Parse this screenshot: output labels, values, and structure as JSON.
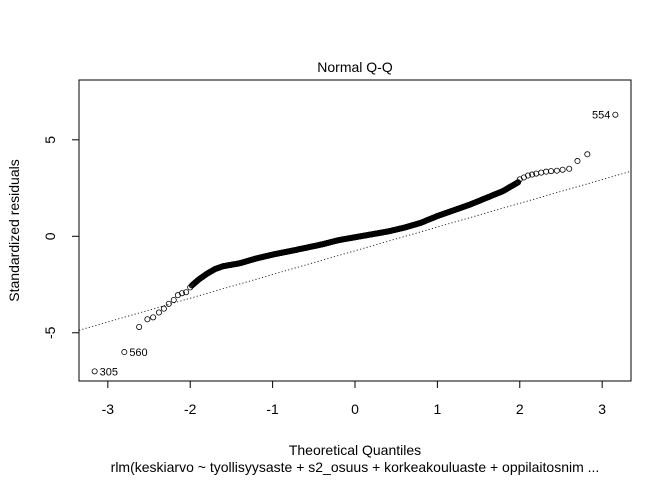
{
  "chart_data": {
    "type": "scatter",
    "title": "Normal Q-Q",
    "xlabel": "Theoretical Quantiles",
    "ylabel": "Standardized residuals",
    "subtitle": "rlm(keskiarvo ~ tyollisyysaste + s2_osuus + korkeakouluaste + oppilaitosnim ...",
    "xlim": [
      -3.35,
      3.35
    ],
    "ylim": [
      -7.5,
      8.1
    ],
    "xticks": [
      -3,
      -2,
      -1,
      0,
      1,
      2,
      3
    ],
    "yticks": [
      -5,
      0,
      5
    ],
    "reference_line": {
      "slope": 1.23,
      "intercept": -0.75,
      "style": "dotted"
    },
    "labeled_points": [
      {
        "label": "554",
        "x": 3.16,
        "y": 6.3
      },
      {
        "label": "560",
        "x": -2.8,
        "y": -6.0
      },
      {
        "label": "305",
        "x": -3.16,
        "y": -7.0
      }
    ],
    "tail_points": [
      {
        "x": -2.62,
        "y": -4.7
      },
      {
        "x": -2.52,
        "y": -4.3
      },
      {
        "x": -2.45,
        "y": -4.2
      },
      {
        "x": -2.38,
        "y": -3.95
      },
      {
        "x": -2.32,
        "y": -3.75
      },
      {
        "x": -2.26,
        "y": -3.5
      },
      {
        "x": -2.2,
        "y": -3.3
      },
      {
        "x": -2.15,
        "y": -3.05
      },
      {
        "x": -2.1,
        "y": -2.95
      },
      {
        "x": -2.05,
        "y": -2.9
      },
      {
        "x": -2.0,
        "y": -2.65
      },
      {
        "x": 2.0,
        "y": 2.95
      },
      {
        "x": 2.05,
        "y": 3.05
      },
      {
        "x": 2.1,
        "y": 3.15
      },
      {
        "x": 2.15,
        "y": 3.2
      },
      {
        "x": 2.2,
        "y": 3.25
      },
      {
        "x": 2.26,
        "y": 3.3
      },
      {
        "x": 2.32,
        "y": 3.35
      },
      {
        "x": 2.38,
        "y": 3.38
      },
      {
        "x": 2.45,
        "y": 3.4
      },
      {
        "x": 2.52,
        "y": 3.45
      },
      {
        "x": 2.6,
        "y": 3.5
      },
      {
        "x": 2.7,
        "y": 3.9
      },
      {
        "x": 2.82,
        "y": 4.25
      }
    ],
    "body_curve": [
      [
        -1.98,
        -2.55
      ],
      [
        -1.9,
        -2.25
      ],
      [
        -1.8,
        -1.95
      ],
      [
        -1.7,
        -1.7
      ],
      [
        -1.6,
        -1.55
      ],
      [
        -1.4,
        -1.4
      ],
      [
        -1.2,
        -1.15
      ],
      [
        -1.0,
        -0.95
      ],
      [
        -0.8,
        -0.78
      ],
      [
        -0.6,
        -0.6
      ],
      [
        -0.4,
        -0.42
      ],
      [
        -0.2,
        -0.2
      ],
      [
        0.0,
        -0.05
      ],
      [
        0.2,
        0.1
      ],
      [
        0.4,
        0.25
      ],
      [
        0.6,
        0.45
      ],
      [
        0.8,
        0.7
      ],
      [
        1.0,
        1.05
      ],
      [
        1.2,
        1.35
      ],
      [
        1.4,
        1.65
      ],
      [
        1.6,
        2.0
      ],
      [
        1.8,
        2.35
      ],
      [
        1.98,
        2.8
      ]
    ],
    "body_point_count": 520,
    "grid": false,
    "legend": "none"
  }
}
